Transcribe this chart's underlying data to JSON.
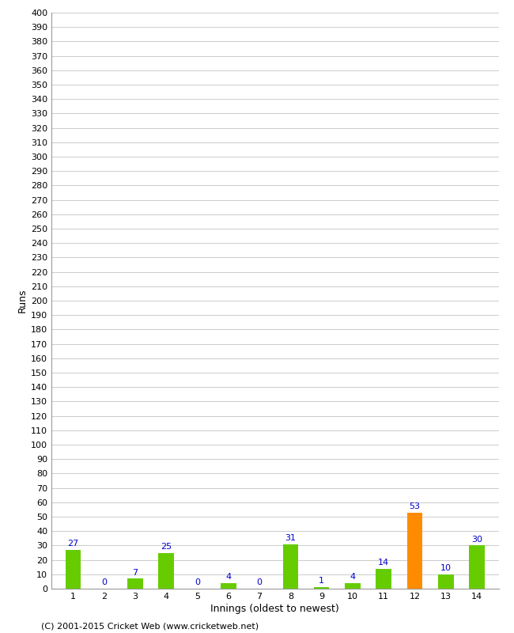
{
  "innings": [
    1,
    2,
    3,
    4,
    5,
    6,
    7,
    8,
    9,
    10,
    11,
    12,
    13,
    14
  ],
  "values": [
    27,
    0,
    7,
    25,
    0,
    4,
    0,
    31,
    1,
    4,
    14,
    53,
    10,
    30
  ],
  "bar_colors": [
    "#66cc00",
    "#66cc00",
    "#66cc00",
    "#66cc00",
    "#66cc00",
    "#66cc00",
    "#66cc00",
    "#66cc00",
    "#66cc00",
    "#66cc00",
    "#66cc00",
    "#ff8c00",
    "#66cc00",
    "#66cc00"
  ],
  "xlabel": "Innings (oldest to newest)",
  "ylabel": "Runs",
  "ylim": [
    0,
    400
  ],
  "yticks": [
    0,
    10,
    20,
    30,
    40,
    50,
    60,
    70,
    80,
    90,
    100,
    110,
    120,
    130,
    140,
    150,
    160,
    170,
    180,
    190,
    200,
    210,
    220,
    230,
    240,
    250,
    260,
    270,
    280,
    290,
    300,
    310,
    320,
    330,
    340,
    350,
    360,
    370,
    380,
    390,
    400
  ],
  "label_color": "#0000cc",
  "label_fontsize": 8,
  "axis_label_fontsize": 9,
  "tick_fontsize": 8,
  "footer": "(C) 2001-2015 Cricket Web (www.cricketweb.net)",
  "footer_fontsize": 8,
  "background_color": "#ffffff",
  "grid_color": "#cccccc",
  "bar_width": 0.5
}
